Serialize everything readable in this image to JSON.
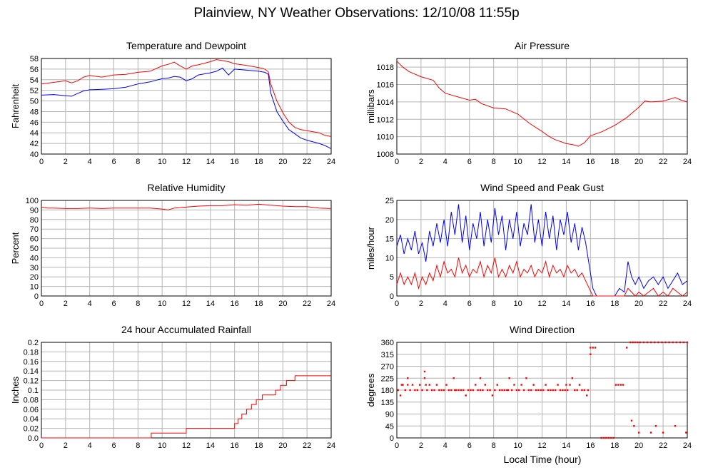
{
  "page": {
    "title": "Plainview, NY Weather Observations: 12/10/08 11:55p",
    "footer_xlabel": "Local Time (hour)"
  },
  "chart_data": [
    {
      "id": "temperature",
      "type": "line",
      "title": "Temperature and Dewpoint",
      "xlabel": "",
      "ylabel": "Fahrenheit",
      "xlim": [
        0,
        24
      ],
      "ylim": [
        40,
        58
      ],
      "xticks": [
        0,
        2,
        4,
        6,
        8,
        10,
        12,
        14,
        16,
        18,
        20,
        22,
        24
      ],
      "yticks": [
        40,
        42,
        44,
        46,
        48,
        50,
        52,
        54,
        56,
        58
      ],
      "grid": true,
      "series": [
        {
          "color": "#ff0000",
          "x": [
            0,
            1,
            2,
            2.5,
            3,
            3.5,
            4,
            5,
            6,
            7,
            8,
            9,
            10,
            10.5,
            11,
            11.5,
            12,
            12.5,
            13,
            14,
            14.5,
            15,
            15.5,
            16,
            17,
            18,
            18.5,
            18.8,
            19,
            19.5,
            20,
            20.5,
            21,
            21.5,
            22,
            23,
            23.5,
            24
          ],
          "values": [
            53.2,
            53.5,
            53.8,
            53.4,
            53.8,
            54.5,
            54.8,
            54.5,
            54.9,
            55.0,
            55.4,
            55.6,
            56.6,
            56.9,
            57.3,
            56.6,
            56.0,
            56.6,
            56.8,
            57.4,
            57.8,
            57.6,
            57.4,
            57.0,
            56.7,
            56.3,
            56.0,
            55.5,
            53.2,
            50.0,
            47.8,
            46.0,
            45.0,
            44.6,
            44.4,
            44.0,
            43.5,
            43.3
          ]
        },
        {
          "color": "#0000ff",
          "x": [
            0,
            1,
            2,
            2.5,
            3,
            3.5,
            4,
            5,
            6,
            7,
            8,
            9,
            10,
            10.5,
            11,
            11.5,
            12,
            12.5,
            13,
            14,
            14.5,
            15,
            15.5,
            16,
            17,
            18,
            18.5,
            18.8,
            19,
            19.5,
            20,
            20.5,
            21,
            21.5,
            22,
            23,
            23.5,
            24
          ],
          "values": [
            51.1,
            51.2,
            51.0,
            50.9,
            51.4,
            51.9,
            52.1,
            52.2,
            52.3,
            52.6,
            53.2,
            53.6,
            54.2,
            54.3,
            54.6,
            54.5,
            53.8,
            54.2,
            54.9,
            55.3,
            55.6,
            56.2,
            54.9,
            56.0,
            55.8,
            55.6,
            55.4,
            55.0,
            51.5,
            48.0,
            46.2,
            44.6,
            43.8,
            43.0,
            42.6,
            42.0,
            41.6,
            41.0
          ]
        }
      ]
    },
    {
      "id": "pressure",
      "type": "line",
      "title": "Air Pressure",
      "xlabel": "",
      "ylabel": "millibars",
      "xlim": [
        0,
        24
      ],
      "ylim": [
        1008,
        1019
      ],
      "xticks": [
        0,
        2,
        4,
        6,
        8,
        10,
        12,
        14,
        16,
        18,
        20,
        22,
        24
      ],
      "yticks": [
        1008,
        1010,
        1012,
        1014,
        1016,
        1018
      ],
      "grid": true,
      "series": [
        {
          "color": "#ff0000",
          "x": [
            0,
            0.5,
            1,
            2,
            3,
            3.5,
            4,
            4.5,
            5,
            6,
            6.5,
            7,
            8,
            9,
            10,
            11,
            12,
            12.5,
            13,
            14,
            14.5,
            15,
            15.5,
            16,
            17,
            18,
            19,
            19.5,
            20,
            20.5,
            21,
            22,
            22.5,
            23,
            23.5,
            24
          ],
          "values": [
            1018.7,
            1018.0,
            1017.5,
            1016.9,
            1016.5,
            1015.6,
            1015.0,
            1014.8,
            1014.6,
            1014.2,
            1014.3,
            1013.8,
            1013.3,
            1013.2,
            1012.6,
            1011.5,
            1010.6,
            1010.1,
            1009.7,
            1009.2,
            1009.1,
            1008.9,
            1009.3,
            1010.1,
            1010.6,
            1011.3,
            1012.2,
            1012.8,
            1013.4,
            1014.1,
            1014.0,
            1014.1,
            1014.3,
            1014.5,
            1014.2,
            1014.0
          ]
        }
      ]
    },
    {
      "id": "humidity",
      "type": "line",
      "title": "Relative Humidity",
      "xlabel": "",
      "ylabel": "Percent",
      "xlim": [
        0,
        24
      ],
      "ylim": [
        0,
        100
      ],
      "xticks": [
        0,
        2,
        4,
        6,
        8,
        10,
        12,
        14,
        16,
        18,
        20,
        22,
        24
      ],
      "yticks": [
        0,
        10,
        20,
        30,
        40,
        50,
        60,
        70,
        80,
        90,
        100
      ],
      "grid": true,
      "series": [
        {
          "color": "#ff0000",
          "x": [
            0,
            0.5,
            1,
            2,
            3,
            4,
            5,
            6,
            7,
            8,
            9,
            10,
            10.5,
            11,
            12,
            13,
            14,
            15,
            16,
            17,
            18,
            19,
            20,
            21,
            22,
            23,
            24
          ],
          "values": [
            93,
            92,
            92,
            91.5,
            91.5,
            92,
            91.5,
            92,
            92,
            92,
            92,
            91,
            90,
            92,
            93,
            94,
            94.5,
            94.5,
            95.5,
            95,
            96,
            95,
            94,
            93.5,
            93.5,
            92,
            91.5
          ]
        }
      ]
    },
    {
      "id": "wind_speed",
      "type": "line",
      "title": "Wind Speed and Peak Gust",
      "xlabel": "",
      "ylabel": "miles/hour",
      "xlim": [
        0,
        24
      ],
      "ylim": [
        0,
        25
      ],
      "xticks": [
        0,
        2,
        4,
        6,
        8,
        10,
        12,
        14,
        16,
        18,
        20,
        22,
        24
      ],
      "yticks": [
        0,
        5,
        10,
        15,
        20,
        25
      ],
      "grid": true,
      "series": [
        {
          "color": "#0000ff",
          "x": [
            0,
            0.3,
            0.6,
            0.9,
            1.2,
            1.5,
            1.8,
            2.1,
            2.4,
            2.7,
            3.0,
            3.3,
            3.6,
            3.9,
            4.2,
            4.5,
            4.8,
            5.1,
            5.4,
            5.7,
            6.0,
            6.3,
            6.6,
            6.9,
            7.2,
            7.5,
            7.8,
            8.1,
            8.4,
            8.7,
            9.0,
            9.3,
            9.6,
            9.9,
            10.2,
            10.5,
            10.8,
            11.1,
            11.4,
            11.7,
            12.0,
            12.3,
            12.6,
            12.9,
            13.2,
            13.5,
            13.8,
            14.1,
            14.4,
            14.7,
            15.0,
            15.3,
            15.6,
            15.9,
            16.2,
            16.5,
            17.0,
            17.5,
            18.0,
            18.4,
            18.8,
            19.1,
            19.4,
            19.7,
            20.0,
            20.4,
            20.8,
            21.2,
            21.6,
            22.0,
            22.4,
            22.8,
            23.2,
            23.6,
            24.0
          ],
          "values": [
            13,
            16,
            11,
            15,
            12,
            17,
            11,
            14,
            9,
            17,
            13,
            19,
            14,
            20,
            13,
            22,
            16,
            24,
            14,
            21,
            12,
            19,
            15,
            22,
            13,
            20,
            14,
            23,
            16,
            21,
            12,
            20,
            15,
            22,
            13,
            19,
            16,
            24,
            14,
            20,
            13,
            22,
            15,
            21,
            12,
            20,
            16,
            22,
            14,
            19,
            12,
            18,
            14,
            8,
            2,
            0,
            0,
            0,
            0,
            2,
            1,
            9,
            5,
            3,
            5,
            2,
            4,
            5,
            3,
            5,
            2,
            4,
            6,
            3,
            4
          ]
        },
        {
          "color": "#ff0000",
          "x": [
            0,
            0.3,
            0.6,
            0.9,
            1.2,
            1.5,
            1.8,
            2.1,
            2.4,
            2.7,
            3.0,
            3.3,
            3.6,
            3.9,
            4.2,
            4.5,
            4.8,
            5.1,
            5.4,
            5.7,
            6.0,
            6.3,
            6.6,
            6.9,
            7.2,
            7.5,
            7.8,
            8.1,
            8.4,
            8.7,
            9.0,
            9.3,
            9.6,
            9.9,
            10.2,
            10.5,
            10.8,
            11.1,
            11.4,
            11.7,
            12.0,
            12.3,
            12.6,
            12.9,
            13.2,
            13.5,
            13.8,
            14.1,
            14.4,
            14.7,
            15.0,
            15.3,
            15.6,
            15.9,
            16.2,
            16.5,
            17.0,
            17.5,
            18.0,
            18.4,
            18.8,
            19.1,
            19.4,
            19.7,
            20.0,
            20.4,
            20.8,
            21.2,
            21.6,
            22.0,
            22.4,
            22.8,
            23.2,
            23.6,
            24.0
          ],
          "values": [
            3,
            6,
            3,
            5,
            3,
            6,
            2,
            5,
            3,
            6,
            4,
            8,
            5,
            9,
            6,
            7,
            5,
            10,
            6,
            8,
            5,
            7,
            6,
            9,
            5,
            8,
            6,
            10,
            5,
            7,
            5,
            8,
            6,
            9,
            5,
            7,
            6,
            8,
            5,
            7,
            6,
            9,
            5,
            8,
            6,
            7,
            5,
            8,
            6,
            7,
            5,
            6,
            4,
            2,
            0,
            0,
            0,
            0,
            0,
            0,
            0,
            2,
            1,
            0,
            1,
            0,
            1,
            2,
            0,
            1,
            0,
            2,
            1,
            0,
            1
          ]
        }
      ]
    },
    {
      "id": "rainfall",
      "type": "line",
      "title": "24 hour Accumulated Rainfall",
      "xlabel": "",
      "ylabel": "Inches",
      "xlim": [
        0,
        24
      ],
      "ylim": [
        0,
        0.2
      ],
      "xticks": [
        0,
        2,
        4,
        6,
        8,
        10,
        12,
        14,
        16,
        18,
        20,
        22,
        24
      ],
      "yticks": [
        0.0,
        0.02,
        0.04,
        0.06,
        0.08,
        0.1,
        0.12,
        0.14,
        0.16,
        0.18,
        0.2
      ],
      "ytick_labels": [
        "0.0",
        "0.02",
        "0.04",
        "0.06",
        "0.08",
        "0.1",
        "0.12",
        "0.14",
        "0.16",
        "0.18",
        "0.2"
      ],
      "grid": true,
      "step": true,
      "series": [
        {
          "color": "#ff0000",
          "x": [
            0,
            9.0,
            9.1,
            11.9,
            12.0,
            15.9,
            16.0,
            16.3,
            16.6,
            17.0,
            17.4,
            17.8,
            18.3,
            19.0,
            19.4,
            19.8,
            20.3,
            21.0,
            24
          ],
          "values": [
            0.0,
            0.0,
            0.01,
            0.01,
            0.02,
            0.02,
            0.03,
            0.04,
            0.05,
            0.06,
            0.07,
            0.08,
            0.09,
            0.09,
            0.1,
            0.11,
            0.12,
            0.13,
            0.13
          ]
        }
      ]
    },
    {
      "id": "wind_direction",
      "type": "scatter",
      "title": "Wind Direction",
      "xlabel": "Local Time (hour)",
      "ylabel": "degrees",
      "xlim": [
        0,
        24
      ],
      "ylim": [
        0,
        360
      ],
      "xticks": [
        0,
        2,
        4,
        6,
        8,
        10,
        12,
        14,
        16,
        18,
        20,
        22,
        24
      ],
      "yticks": [
        0,
        45,
        90,
        135,
        180,
        225,
        270,
        315,
        360
      ],
      "grid": true,
      "series": [
        {
          "color": "#ff0000",
          "x": [
            0.1,
            0.3,
            0.5,
            0.7,
            0.9,
            1.1,
            1.3,
            1.5,
            1.7,
            1.9,
            2.1,
            2.3,
            2.5,
            2.7,
            2.9,
            3.1,
            3.3,
            3.5,
            3.7,
            3.9,
            4.1,
            4.3,
            4.5,
            4.7,
            4.9,
            5.1,
            5.3,
            5.5,
            5.7,
            5.9,
            6.1,
            6.3,
            6.5,
            6.7,
            6.9,
            7.1,
            7.3,
            7.5,
            7.7,
            7.9,
            8.1,
            8.3,
            8.5,
            8.7,
            8.9,
            9.1,
            9.3,
            9.5,
            9.7,
            9.9,
            10.1,
            10.3,
            10.5,
            10.7,
            10.9,
            11.1,
            11.3,
            11.5,
            11.7,
            11.9,
            12.1,
            12.3,
            12.5,
            12.7,
            12.9,
            13.1,
            13.3,
            13.5,
            13.7,
            13.9,
            14.1,
            14.3,
            14.5,
            14.7,
            14.9,
            15.1,
            15.3,
            15.5,
            15.7,
            15.8,
            16.0,
            16.2,
            16.4,
            16.9,
            17.1,
            17.3,
            17.5,
            17.7,
            17.9,
            18.1,
            18.3,
            18.5,
            18.7,
            19.0,
            19.3,
            19.5,
            19.7,
            19.9,
            20.1,
            20.4,
            20.7,
            21.0,
            21.3,
            21.6,
            21.9,
            22.2,
            22.5,
            22.8,
            23.1,
            23.4,
            23.7,
            24.0,
            20.0,
            21.0,
            22.0,
            23.9,
            19.6,
            19.4,
            21.4,
            23.0,
            0.4,
            0.9,
            2.3,
            2.4,
            4.8,
            6.9,
            9.2,
            14.0,
            16.0
          ],
          "values": [
            180,
            160,
            200,
            180,
            225,
            180,
            200,
            180,
            180,
            200,
            180,
            225,
            180,
            200,
            180,
            180,
            200,
            180,
            180,
            180,
            200,
            180,
            180,
            225,
            180,
            180,
            180,
            180,
            160,
            180,
            180,
            180,
            200,
            180,
            225,
            180,
            200,
            180,
            180,
            160,
            180,
            200,
            180,
            180,
            180,
            180,
            225,
            180,
            200,
            180,
            180,
            200,
            180,
            225,
            180,
            180,
            200,
            180,
            180,
            180,
            180,
            200,
            180,
            180,
            180,
            180,
            200,
            180,
            180,
            180,
            180,
            200,
            225,
            180,
            180,
            200,
            180,
            180,
            160,
            180,
            340,
            340,
            340,
            0,
            0,
            0,
            0,
            0,
            0,
            200,
            200,
            200,
            200,
            340,
            360,
            360,
            360,
            360,
            360,
            360,
            360,
            360,
            360,
            360,
            360,
            360,
            360,
            360,
            360,
            360,
            360,
            360,
            20,
            20,
            20,
            20,
            45,
            65,
            45,
            45,
            200,
            200,
            250,
            200,
            180,
            180,
            180,
            200,
            315
          ]
        }
      ]
    }
  ]
}
